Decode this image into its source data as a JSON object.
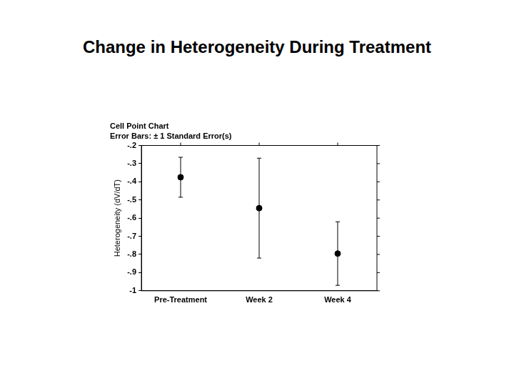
{
  "chart_data": {
    "type": "scatter",
    "title": "Change in Heterogeneity During Treatment",
    "subtitle": "Cell Point Chart",
    "annotations": [
      "Error Bars: ± 1 Standard Error(s)"
    ],
    "y_label": "Heterogeneity (dV/dT)",
    "categories": [
      "Pre-Treatment",
      "Week 2",
      "Week 4"
    ],
    "values": [
      -0.375,
      -0.545,
      -0.795
    ],
    "errors": [
      0.11,
      0.275,
      0.175
    ],
    "color": "#000000",
    "marker": "circle",
    "ylim": [
      -1,
      -0.2
    ],
    "yticks": [
      {
        "value": -0.2,
        "label": "-.2"
      },
      {
        "value": -0.3,
        "label": "-.3"
      },
      {
        "value": -0.4,
        "label": "-.4"
      },
      {
        "value": -0.5,
        "label": "-.5"
      },
      {
        "value": -0.6,
        "label": "-.6"
      },
      {
        "value": -0.7,
        "label": "-.7"
      },
      {
        "value": -0.8,
        "label": "-.8"
      },
      {
        "value": -0.9,
        "label": "-.9"
      },
      -1
    ],
    "grid": false
  }
}
